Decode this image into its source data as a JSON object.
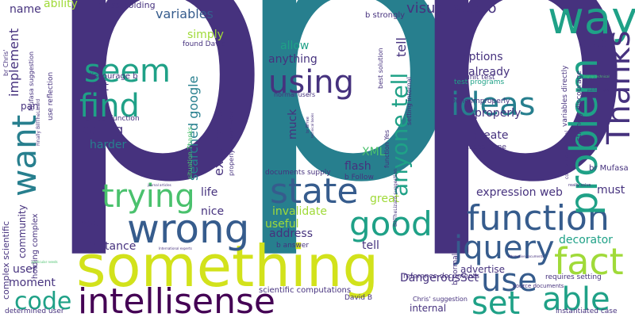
{
  "palette": {
    "indigo": "#46327e",
    "teal": "#277f8e",
    "green": "#1fa187",
    "light_green": "#4ac16d",
    "lime": "#a0da39",
    "yellow": "#d2e21b",
    "blue": "#365c8d",
    "dark": "#440154"
  },
  "words": {
    "pp_left": "p",
    "pp_mid": "p",
    "pp_right": "p",
    "something": "something",
    "intellisense": "intellisense",
    "wrong": "wrong",
    "state": "state",
    "function": "function",
    "problem": "problem",
    "way": "way",
    "using": "using",
    "seem": "seem",
    "find": "find",
    "want": "want",
    "trying": "trying",
    "good": "good",
    "jquery": "jquery",
    "fact": "fact",
    "able": "able",
    "use": "use",
    "set": "set",
    "code": "code",
    "ideas": "ideas",
    "thanks": "Thanks",
    "anyone_tell": "anyone tell",
    "implement": "implement",
    "visual_studio": "visual studio",
    "variables": "variables",
    "ability": "ability",
    "name": "name",
    "class_holding": "class holding",
    "b_strongly": "b strongly",
    "test": "test",
    "calling": "calling",
    "harder": "harder",
    "searched_google": "searched google",
    "external_js": "external js",
    "anything": "anything",
    "allow": "allow",
    "simply": "simply",
    "options": "options",
    "already": "already",
    "properly": "properly",
    "create": "create",
    "data": "data",
    "expression_web": "expression web",
    "must": "must",
    "decorator": "decorator",
    "advertise": "advertise",
    "dangerousset": "DangerousSet",
    "internal": "internal",
    "user": "user",
    "moment": "moment",
    "community": "community",
    "life": "life",
    "nice": "nice",
    "show": "show",
    "instance": "instance",
    "useful": "useful",
    "address": "address",
    "invalidate": "invalidate",
    "great": "great",
    "tell": "tell",
    "flash": "flash",
    "xml": "XML",
    "muck": "muck",
    "pan": "pan",
    "complex_scientific": "complex scientific",
    "holding_complex": "holding complex",
    "determined_user": "determined user",
    "scientific_computations": "scientific computations",
    "david_b": "David B",
    "instantiated_case": "instantiated case",
    "requires_setting": "requires setting",
    "source_documents": "source documents",
    "reference_documents": "reference documents",
    "chris_suggestion": "Chris' suggestion",
    "documents_supply": "documents supply",
    "b_follow": "b Follow",
    "b_answer": "b answer",
    "unit_test": "unit test",
    "test_programs": "test programs",
    "done_improperly": "Done improperly",
    "cases_done": "cases Done",
    "br_mufasa": "br Mufasa",
    "variables_directly": "variables directly",
    "strongly_discourage": "strongly discourage",
    "discourage_b": "discourage b",
    "found_david": "found David",
    "member_function": "member function",
    "use_reflection": "use reflection",
    "mufasa_suggestion": "Mufasa suggestion",
    "br_chris": "br Chris'",
    "best_solution": "best solution",
    "setting_internal": "setting internal",
    "function_yes": "function Yes",
    "normal_users": "normal users",
    "situation_thanks": "situation Thanks",
    "properly_instantiated": "properly instantiated",
    "billthelizard_suggestion": "BillTheLizard suggestion",
    "control_international": "control International",
    "b_normal": "b normal",
    "br_bfree": "br BFree",
    "finally_billthelizard": "Finally BillTheLizard",
    "really_solve": "really solve",
    "publish_highly": "publish highly",
    "highly_technical": "highly technical",
    "alternative_documents": "alternative documents",
    "international_experts": "International experts",
    "particular_needs": "particular needs",
    "journal_articles": "journal articles",
    "technical_books": "technical books"
  }
}
